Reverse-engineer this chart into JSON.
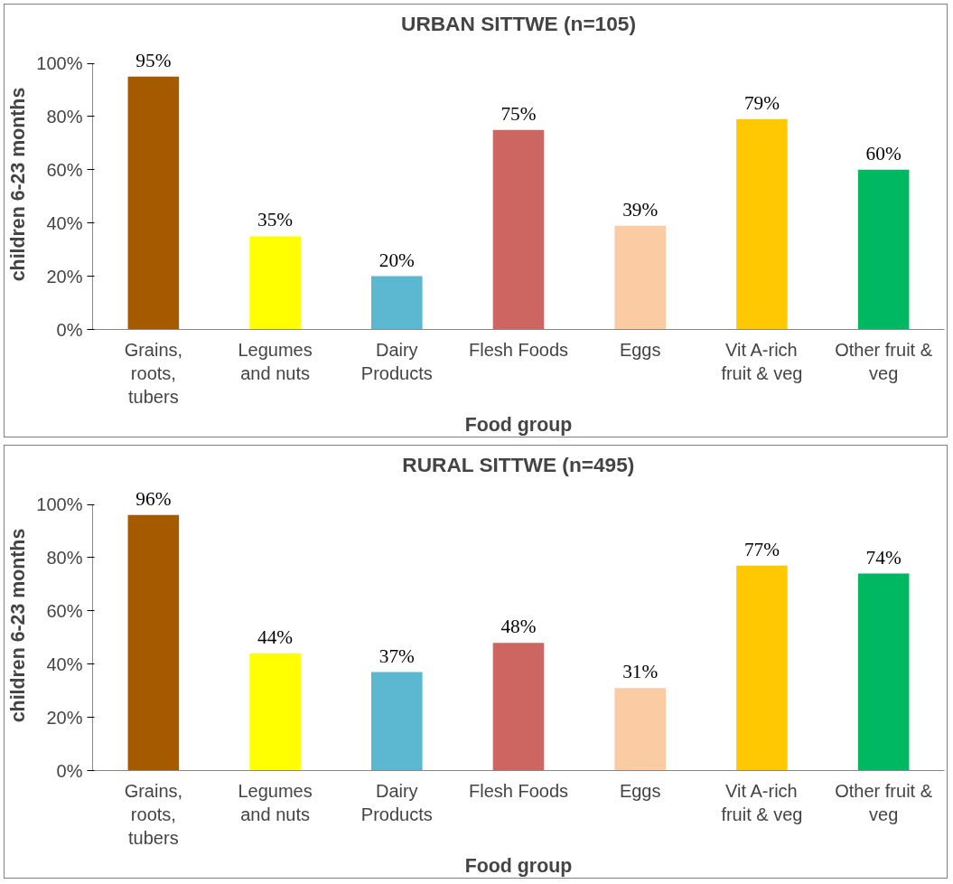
{
  "chart_data": [
    {
      "type": "bar",
      "title": "URBAN SITTWE (n=105)",
      "xlabel": "Food group",
      "ylabel": "children 6-23 months",
      "categories": [
        "Grains,\nroots,\ntubers",
        "Legumes\nand nuts",
        "Dairy\nProducts",
        "Flesh Foods",
        "Eggs",
        "Vit A-rich\nfruit & veg",
        "Other fruit &\nveg"
      ],
      "values": [
        95,
        35,
        20,
        75,
        39,
        79,
        60
      ],
      "value_labels": [
        "95%",
        "35%",
        "20%",
        "75%",
        "39%",
        "79%",
        "60%"
      ],
      "colors": [
        "#a65a00",
        "#ffff00",
        "#5bb8d0",
        "#cd6660",
        "#fbcba4",
        "#ffc800",
        "#00b862"
      ],
      "ylim": [
        0,
        100
      ],
      "yticks": [
        {
          "value": 0,
          "label": "0%"
        },
        {
          "value": 20,
          "label": "20%"
        },
        {
          "value": 40,
          "label": "40%"
        },
        {
          "value": 60,
          "label": "60%"
        },
        {
          "value": 80,
          "label": "80%"
        },
        {
          "value": 100,
          "label": "100%"
        }
      ],
      "grid": false,
      "legend": false
    },
    {
      "type": "bar",
      "title": "RURAL SITTWE (n=495)",
      "xlabel": "Food group",
      "ylabel": "children 6-23 months",
      "categories": [
        "Grains,\nroots,\ntubers",
        "Legumes\nand nuts",
        "Dairy\nProducts",
        "Flesh Foods",
        "Eggs",
        "Vit A-rich\nfruit & veg",
        "Other fruit &\nveg"
      ],
      "values": [
        96,
        44,
        37,
        48,
        31,
        77,
        74
      ],
      "value_labels": [
        "96%",
        "44%",
        "37%",
        "48%",
        "31%",
        "77%",
        "74%"
      ],
      "colors": [
        "#a65a00",
        "#ffff00",
        "#5bb8d0",
        "#cd6660",
        "#fbcba4",
        "#ffc800",
        "#00b862"
      ],
      "ylim": [
        0,
        100
      ],
      "yticks": [
        {
          "value": 0,
          "label": "0%"
        },
        {
          "value": 20,
          "label": "20%"
        },
        {
          "value": 40,
          "label": "40%"
        },
        {
          "value": 60,
          "label": "60%"
        },
        {
          "value": 80,
          "label": "80%"
        },
        {
          "value": 100,
          "label": "100%"
        }
      ],
      "grid": false,
      "legend": false
    }
  ]
}
